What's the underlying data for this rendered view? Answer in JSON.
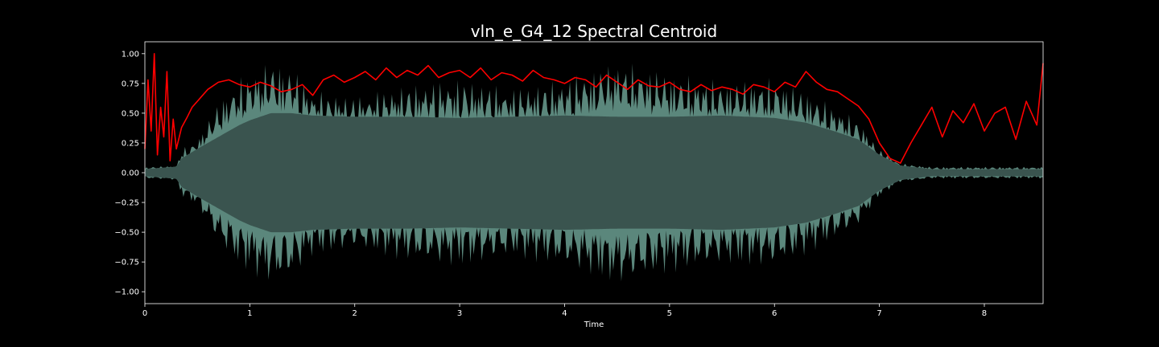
{
  "colors": {
    "background": "#000000",
    "axes_frame": "#ffffff",
    "text": "#ffffff",
    "waveform_fill": "#3a544f",
    "waveform_peaks": "#5b877c",
    "centroid_line": "#ff0000"
  },
  "chart_data": {
    "type": "line",
    "title": "vln_e_G4_12 Spectral Centroid",
    "xlabel": "Time",
    "ylabel": "",
    "xlim": [
      0,
      8.56
    ],
    "ylim": [
      -1.1,
      1.1
    ],
    "x_ticks": [
      0,
      1,
      2,
      3,
      4,
      5,
      6,
      7,
      8
    ],
    "x_tick_labels": [
      "0",
      "1",
      "2",
      "3",
      "4",
      "5",
      "6",
      "7",
      "8"
    ],
    "y_ticks": [
      1.0,
      0.75,
      0.5,
      0.25,
      0.0,
      -0.25,
      -0.5,
      -0.75,
      -1.0
    ],
    "y_tick_labels": [
      "1.00",
      "0.75",
      "0.50",
      "0.25",
      "0.00",
      "−0.25",
      "−0.50",
      "−0.75",
      "−1.00"
    ],
    "grid": false,
    "series": [
      {
        "kind": "waveform",
        "x": [
          0,
          0.3,
          0.35,
          0.5,
          0.7,
          0.9,
          1.0,
          1.2,
          1.4,
          1.6,
          2.0,
          2.5,
          3.0,
          3.5,
          4.0,
          4.5,
          5.0,
          5.5,
          6.0,
          6.3,
          6.6,
          6.8,
          7.0,
          7.2,
          7.5,
          8.0,
          8.56
        ],
        "envelope": [
          0.03,
          0.05,
          0.12,
          0.2,
          0.3,
          0.4,
          0.44,
          0.5,
          0.5,
          0.48,
          0.47,
          0.47,
          0.46,
          0.47,
          0.48,
          0.47,
          0.47,
          0.48,
          0.46,
          0.42,
          0.34,
          0.28,
          0.15,
          0.06,
          0.03,
          0.03,
          0.03
        ],
        "peaks": [
          0.05,
          0.06,
          0.2,
          0.28,
          0.6,
          0.8,
          0.85,
          0.95,
          0.9,
          0.7,
          0.65,
          0.75,
          0.8,
          0.72,
          0.8,
          0.95,
          0.85,
          0.78,
          0.8,
          0.7,
          0.55,
          0.45,
          0.2,
          0.08,
          0.05,
          0.05,
          0.05
        ]
      },
      {
        "kind": "centroid",
        "x": [
          0.0,
          0.03,
          0.06,
          0.09,
          0.12,
          0.15,
          0.18,
          0.21,
          0.24,
          0.27,
          0.3,
          0.35,
          0.4,
          0.45,
          0.5,
          0.55,
          0.6,
          0.7,
          0.8,
          0.9,
          1.0,
          1.1,
          1.2,
          1.3,
          1.4,
          1.5,
          1.6,
          1.7,
          1.8,
          1.9,
          2.0,
          2.1,
          2.2,
          2.3,
          2.4,
          2.5,
          2.6,
          2.7,
          2.8,
          2.9,
          3.0,
          3.1,
          3.2,
          3.3,
          3.4,
          3.5,
          3.6,
          3.7,
          3.8,
          3.9,
          4.0,
          4.1,
          4.2,
          4.3,
          4.4,
          4.5,
          4.6,
          4.7,
          4.8,
          4.9,
          5.0,
          5.1,
          5.2,
          5.3,
          5.4,
          5.5,
          5.6,
          5.7,
          5.8,
          5.9,
          6.0,
          6.1,
          6.2,
          6.3,
          6.4,
          6.5,
          6.6,
          6.7,
          6.8,
          6.9,
          7.0,
          7.1,
          7.2,
          7.3,
          7.4,
          7.5,
          7.6,
          7.7,
          7.8,
          7.9,
          8.0,
          8.1,
          8.2,
          8.3,
          8.4,
          8.5,
          8.56
        ],
        "y": [
          0.2,
          0.78,
          0.35,
          1.0,
          0.15,
          0.55,
          0.3,
          0.85,
          0.1,
          0.45,
          0.2,
          0.38,
          0.46,
          0.55,
          0.6,
          0.65,
          0.7,
          0.76,
          0.78,
          0.74,
          0.72,
          0.76,
          0.73,
          0.68,
          0.7,
          0.74,
          0.65,
          0.78,
          0.82,
          0.76,
          0.8,
          0.85,
          0.78,
          0.88,
          0.8,
          0.86,
          0.82,
          0.9,
          0.8,
          0.84,
          0.86,
          0.8,
          0.88,
          0.78,
          0.84,
          0.82,
          0.77,
          0.86,
          0.8,
          0.78,
          0.75,
          0.8,
          0.78,
          0.72,
          0.82,
          0.76,
          0.7,
          0.78,
          0.73,
          0.72,
          0.76,
          0.7,
          0.68,
          0.74,
          0.69,
          0.72,
          0.7,
          0.66,
          0.74,
          0.72,
          0.68,
          0.76,
          0.72,
          0.85,
          0.76,
          0.7,
          0.68,
          0.62,
          0.56,
          0.45,
          0.25,
          0.12,
          0.08,
          0.25,
          0.4,
          0.55,
          0.3,
          0.52,
          0.42,
          0.58,
          0.35,
          0.5,
          0.55,
          0.28,
          0.6,
          0.4,
          0.92
        ]
      }
    ]
  }
}
